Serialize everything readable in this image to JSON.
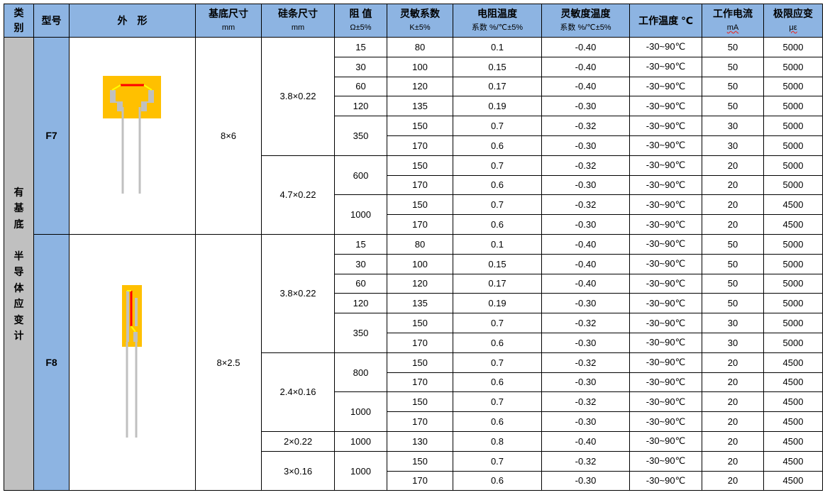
{
  "header": {
    "category": "类别",
    "model": "型号",
    "shape": "外　形",
    "substrate": "基底尺寸",
    "substrate_unit": "mm",
    "strip": "硅条尺寸",
    "strip_unit": "mm",
    "resistance": "阻 值",
    "resistance_unit": "Ω±5%",
    "gauge": "灵敏系数",
    "gauge_unit": "K±5%",
    "tcr": "电阻温度",
    "tcr_unit": "系数 %/℃±5%",
    "tcs": "灵敏度温度",
    "tcs_unit": "系数 %/℃±5%",
    "temp": "工作温度 ℃",
    "current": "工作电流",
    "current_unit": "mA",
    "strain": "极限应变",
    "strain_unit": "με"
  },
  "category_lines": [
    "有",
    "基",
    "底",
    "",
    "半",
    "导",
    "体",
    "应",
    "变",
    "计"
  ],
  "colors": {
    "header": "#8db4e2",
    "category": "#c0c0c0",
    "substrate_pad": "#ffc000",
    "strip": "#ff0000",
    "lead": "#c0c0c0",
    "wire": "#ffff00"
  },
  "groups": [
    {
      "model": "F7",
      "shape_icon": "f7-strain-gauge-image",
      "substrate": "8×6",
      "strips": [
        {
          "size": "3.8×0.22",
          "res": [
            {
              "value": "15",
              "rows": [
                [
                  "80",
                  "0.1",
                  "-0.40",
                  "-30~90℃",
                  "50",
                  "5000"
                ]
              ]
            },
            {
              "value": "30",
              "rows": [
                [
                  "100",
                  "0.15",
                  "-0.40",
                  "-30~90℃",
                  "50",
                  "5000"
                ]
              ]
            },
            {
              "value": "60",
              "rows": [
                [
                  "120",
                  "0.17",
                  "-0.40",
                  "-30~90℃",
                  "50",
                  "5000"
                ]
              ]
            },
            {
              "value": "120",
              "rows": [
                [
                  "135",
                  "0.19",
                  "-0.30",
                  "-30~90℃",
                  "50",
                  "5000"
                ]
              ]
            },
            {
              "value": "350",
              "rows": [
                [
                  "150",
                  "0.7",
                  "-0.32",
                  "-30~90℃",
                  "30",
                  "5000"
                ],
                [
                  "170",
                  "0.6",
                  "-0.30",
                  "-30~90℃",
                  "30",
                  "5000"
                ]
              ]
            }
          ]
        },
        {
          "size": "4.7×0.22",
          "res": [
            {
              "value": "600",
              "rows": [
                [
                  "150",
                  "0.7",
                  "-0.32",
                  "-30~90℃",
                  "20",
                  "5000"
                ],
                [
                  "170",
                  "0.6",
                  "-0.30",
                  "-30~90℃",
                  "20",
                  "5000"
                ]
              ]
            },
            {
              "value": "1000",
              "rows": [
                [
                  "150",
                  "0.7",
                  "-0.32",
                  "-30~90℃",
                  "20",
                  "4500"
                ],
                [
                  "170",
                  "0.6",
                  "-0.30",
                  "-30~90℃",
                  "20",
                  "4500"
                ]
              ]
            }
          ]
        }
      ]
    },
    {
      "model": "F8",
      "shape_icon": "f8-strain-gauge-image",
      "substrate": "8×2.5",
      "strips": [
        {
          "size": "3.8×0.22",
          "res": [
            {
              "value": "15",
              "rows": [
                [
                  "80",
                  "0.1",
                  "-0.40",
                  "-30~90℃",
                  "50",
                  "5000"
                ]
              ]
            },
            {
              "value": "30",
              "rows": [
                [
                  "100",
                  "0.15",
                  "-0.40",
                  "-30~90℃",
                  "50",
                  "5000"
                ]
              ]
            },
            {
              "value": "60",
              "rows": [
                [
                  "120",
                  "0.17",
                  "-0.40",
                  "-30~90℃",
                  "50",
                  "5000"
                ]
              ]
            },
            {
              "value": "120",
              "rows": [
                [
                  "135",
                  "0.19",
                  "-0.30",
                  "-30~90℃",
                  "50",
                  "5000"
                ]
              ]
            },
            {
              "value": "350",
              "rows": [
                [
                  "150",
                  "0.7",
                  "-0.32",
                  "-30~90℃",
                  "30",
                  "5000"
                ],
                [
                  "170",
                  "0.6",
                  "-0.30",
                  "-30~90℃",
                  "30",
                  "5000"
                ]
              ]
            }
          ]
        },
        {
          "size": "2.4×0.16",
          "res": [
            {
              "value": "800",
              "rows": [
                [
                  "150",
                  "0.7",
                  "-0.32",
                  "-30~90℃",
                  "20",
                  "4500"
                ],
                [
                  "170",
                  "0.6",
                  "-0.30",
                  "-30~90℃",
                  "20",
                  "4500"
                ]
              ]
            },
            {
              "value": "1000",
              "rows": [
                [
                  "150",
                  "0.7",
                  "-0.32",
                  "-30~90℃",
                  "20",
                  "4500"
                ],
                [
                  "170",
                  "0.6",
                  "-0.30",
                  "-30~90℃",
                  "20",
                  "4500"
                ]
              ]
            }
          ]
        },
        {
          "size": "2×0.22",
          "res": [
            {
              "value": "1000",
              "rows": [
                [
                  "130",
                  "0.8",
                  "-0.40",
                  "-30~90℃",
                  "20",
                  "4500"
                ]
              ]
            }
          ]
        },
        {
          "size": "3×0.16",
          "res": [
            {
              "value": "1000",
              "rows": [
                [
                  "150",
                  "0.7",
                  "-0.32",
                  "-30~90℃",
                  "20",
                  "4500"
                ],
                [
                  "170",
                  "0.6",
                  "-0.30",
                  "-30~90℃",
                  "20",
                  "4500"
                ]
              ]
            }
          ]
        }
      ]
    }
  ]
}
